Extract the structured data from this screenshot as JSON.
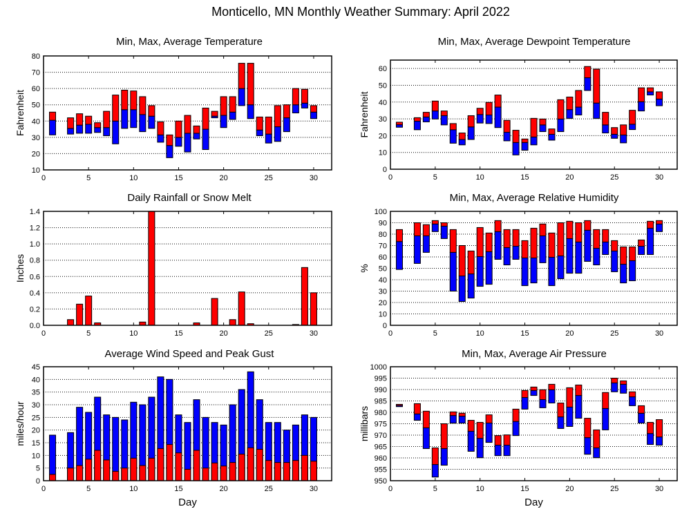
{
  "title": "Monticello, MN Monthly Weather Summary: April 2022",
  "colors": {
    "upper": "#ff0000",
    "lower": "#0000ff",
    "outline": "#000000"
  },
  "chart_data": [
    {
      "type": "bar",
      "subtype": "min-avg-max range",
      "title": "Min, Max, Average Temperature",
      "xlabel": "",
      "ylabel": "Fahrenheit",
      "xlim": [
        0,
        32
      ],
      "ylim": [
        10,
        80
      ],
      "xticks": [
        0,
        5,
        10,
        15,
        20,
        25,
        30
      ],
      "yticks": [
        10,
        20,
        30,
        40,
        50,
        60,
        70,
        80
      ],
      "grid": true,
      "x": [
        1,
        3,
        4,
        5,
        6,
        7,
        8,
        9,
        10,
        11,
        12,
        13,
        14,
        15,
        16,
        17,
        18,
        19,
        20,
        21,
        22,
        23,
        24,
        25,
        26,
        27,
        28,
        29,
        30
      ],
      "min": [
        31.5,
        32,
        32.5,
        32.5,
        33,
        31,
        26,
        35.5,
        36,
        33.5,
        35.5,
        27,
        17.5,
        24.5,
        21,
        29,
        22.5,
        42,
        36,
        41,
        49.5,
        41.5,
        31,
        26.5,
        27.5,
        33.5,
        45,
        48,
        41.5
      ],
      "avg": [
        40.5,
        35.5,
        37.5,
        38,
        36,
        36,
        40,
        47,
        47,
        44,
        43,
        31.5,
        25,
        30,
        32.5,
        32.5,
        35,
        43,
        43.5,
        45.5,
        60,
        50,
        34.5,
        32,
        36.5,
        42,
        50,
        51,
        45.5
      ],
      "max": [
        45.5,
        42,
        44.5,
        43,
        39,
        46,
        56,
        59,
        58.5,
        55,
        49.5,
        39.5,
        31.5,
        40,
        43.5,
        37,
        48,
        46,
        55,
        55,
        75.5,
        75.5,
        42.5,
        42.5,
        49.5,
        50,
        60,
        59.5,
        49.5
      ]
    },
    {
      "type": "bar",
      "subtype": "min-avg-max range",
      "title": "Min, Max, Average Dewpoint Temperature",
      "xlabel": "",
      "ylabel": "Fahrenheit",
      "xlim": [
        0,
        32
      ],
      "ylim": [
        0,
        65
      ],
      "xticks": [
        0,
        5,
        10,
        15,
        20,
        25,
        30
      ],
      "yticks": [
        0,
        10,
        20,
        30,
        40,
        50,
        60
      ],
      "grid": true,
      "x": [
        1,
        3,
        4,
        5,
        6,
        7,
        8,
        9,
        10,
        11,
        12,
        13,
        14,
        15,
        16,
        17,
        18,
        19,
        20,
        21,
        22,
        23,
        24,
        25,
        26,
        27,
        28,
        29,
        30
      ],
      "min": [
        25,
        23.5,
        28.2,
        29.9,
        26.4,
        15.5,
        14.5,
        17.7,
        27.5,
        27.2,
        24.8,
        16.9,
        8.5,
        11.3,
        14.5,
        22.4,
        17.3,
        22.4,
        30.3,
        32.3,
        46.9,
        30.3,
        21.6,
        18.4,
        15.7,
        23.6,
        34.7,
        44.2,
        37.8
      ],
      "avg": [
        26.5,
        28.6,
        31.1,
        34.7,
        31.9,
        23.5,
        17.7,
        25.2,
        32.6,
        32.3,
        37,
        22,
        15.9,
        15.9,
        19.2,
        26.4,
        20.8,
        29.9,
        35.5,
        37,
        54.5,
        39.4,
        26.4,
        20.8,
        20.4,
        26.8,
        40.2,
        46.1,
        41.8
      ],
      "max": [
        28,
        30.7,
        33.9,
        40.6,
        34.7,
        27.2,
        21.6,
        31.9,
        36.3,
        39.8,
        44.2,
        29.1,
        23.2,
        18,
        30.3,
        29.9,
        24,
        41.4,
        43,
        46.9,
        61.2,
        59.6,
        33.9,
        24.8,
        26.4,
        35.1,
        48.5,
        48.5,
        46.1
      ]
    },
    {
      "type": "bar",
      "title": "Daily Rainfall or Snow Melt",
      "xlabel": "",
      "ylabel": "Inches",
      "xlim": [
        0,
        32
      ],
      "ylim": [
        0,
        1.4
      ],
      "xticks": [
        0,
        5,
        10,
        15,
        20,
        25,
        30
      ],
      "yticks": [
        0.0,
        0.2,
        0.4,
        0.6,
        0.8,
        1.0,
        1.2,
        1.4
      ],
      "ytick_labels": [
        "0.0",
        "0.2",
        "0.4",
        "0.6",
        "0.8",
        "1.0",
        "1.2",
        "1.4"
      ],
      "grid": true,
      "x": [
        3,
        4,
        5,
        6,
        11,
        12,
        17,
        19,
        21,
        22,
        23,
        28,
        29,
        30
      ],
      "values": [
        0.07,
        0.26,
        0.36,
        0.03,
        0.04,
        1.4,
        0.03,
        0.33,
        0.07,
        0.41,
        0.02,
        0.01,
        0.71,
        0.4
      ]
    },
    {
      "type": "bar",
      "subtype": "min-avg-max range",
      "title": "Min, Max, Average Relative Humidity",
      "xlabel": "",
      "ylabel": "%",
      "xlim": [
        0,
        32
      ],
      "ylim": [
        0,
        100
      ],
      "xticks": [
        0,
        5,
        10,
        15,
        20,
        25,
        30
      ],
      "yticks": [
        0,
        10,
        20,
        30,
        40,
        50,
        60,
        70,
        80,
        90,
        100
      ],
      "grid": true,
      "x": [
        1,
        3,
        4,
        5,
        6,
        7,
        8,
        9,
        10,
        11,
        12,
        13,
        14,
        15,
        16,
        17,
        18,
        19,
        20,
        21,
        22,
        23,
        24,
        25,
        26,
        27,
        28,
        29,
        30
      ],
      "min": [
        49,
        54.3,
        64,
        82.2,
        76.1,
        30,
        20.9,
        23.9,
        34.2,
        36,
        57.9,
        53,
        57.9,
        34.8,
        37.2,
        54.9,
        34.8,
        40.9,
        45.7,
        45.7,
        56.1,
        53,
        62.1,
        47,
        37.2,
        39.1,
        62.1,
        62.1,
        82.2
      ],
      "avg": [
        73.5,
        78.5,
        78.5,
        88.9,
        87,
        64,
        43.3,
        45.1,
        60.3,
        64.6,
        82.2,
        68.2,
        69.4,
        59.1,
        59.1,
        78.5,
        59.7,
        60.9,
        76.1,
        73.1,
        83.4,
        67.6,
        73.1,
        65.2,
        53.6,
        56.7,
        69.4,
        85.2,
        88.9
      ],
      "max": [
        84,
        90,
        88.3,
        91.9,
        90,
        84,
        70,
        65.2,
        85.8,
        81,
        91.9,
        84,
        84,
        74.3,
        85.2,
        88.9,
        81,
        90,
        91.3,
        90,
        91.9,
        84,
        84,
        74.3,
        68.8,
        68.8,
        74.9,
        91.3,
        91.9
      ]
    },
    {
      "type": "bar",
      "subtype": "average and peak",
      "title": "Average Wind Speed and Peak Gust",
      "xlabel": "Day",
      "ylabel": "miles/hour",
      "xlim": [
        0,
        32
      ],
      "ylim": [
        0,
        45
      ],
      "xticks": [
        0,
        5,
        10,
        15,
        20,
        25,
        30
      ],
      "yticks": [
        0,
        5,
        10,
        15,
        20,
        25,
        30,
        35,
        40,
        45
      ],
      "grid": true,
      "x": [
        1,
        3,
        4,
        5,
        6,
        7,
        8,
        9,
        10,
        11,
        12,
        13,
        14,
        15,
        16,
        17,
        18,
        19,
        20,
        21,
        22,
        23,
        24,
        25,
        26,
        27,
        28,
        29,
        30
      ],
      "avg": [
        2.5,
        5,
        6,
        8.5,
        12,
        8.2,
        3.7,
        5,
        8.9,
        6,
        8.9,
        12.7,
        14.3,
        11,
        4.5,
        12,
        5,
        7,
        5.8,
        7.2,
        10.5,
        13,
        12.4,
        8,
        7.2,
        7.2,
        8,
        10,
        7.7
      ],
      "peak": [
        18,
        19,
        29,
        27,
        33,
        26,
        25,
        24,
        31,
        30,
        33,
        41,
        40,
        26,
        23,
        32,
        25,
        23,
        22,
        30,
        36,
        43,
        32,
        23,
        23,
        20,
        22,
        26,
        25
      ]
    },
    {
      "type": "bar",
      "subtype": "min-avg-max range",
      "title": "Min, Max, Average Air Pressure",
      "xlabel": "Day",
      "ylabel": "millibars",
      "xlim": [
        0,
        32
      ],
      "ylim": [
        950,
        1000
      ],
      "xticks": [
        0,
        5,
        10,
        15,
        20,
        25,
        30
      ],
      "yticks": [
        950,
        955,
        960,
        965,
        970,
        975,
        980,
        985,
        990,
        995,
        1000
      ],
      "grid": true,
      "x": [
        1,
        3,
        4,
        5,
        6,
        7,
        8,
        9,
        10,
        11,
        12,
        13,
        14,
        15,
        16,
        17,
        18,
        19,
        20,
        21,
        22,
        23,
        24,
        25,
        26,
        27,
        28,
        29,
        30
      ],
      "min": [
        982.5,
        976.5,
        964.1,
        951.6,
        956.8,
        975.3,
        975.3,
        962.9,
        960.1,
        966.8,
        961,
        961,
        969.8,
        981.4,
        987.4,
        982,
        984.1,
        972.9,
        973.8,
        977.4,
        961.6,
        960.1,
        972.3,
        989,
        988.4,
        982.9,
        975.3,
        965.9,
        965.6
      ],
      "avg": [
        983,
        979.3,
        973.2,
        957.1,
        964.1,
        978.6,
        978.3,
        971.7,
        968.6,
        975.3,
        965.6,
        965.6,
        976,
        986.5,
        989.6,
        985.6,
        989.9,
        978,
        982.3,
        987.4,
        968.9,
        964.4,
        981.7,
        992.9,
        992.3,
        986.8,
        979.6,
        970.7,
        969.2
      ],
      "max": [
        983.5,
        983.8,
        980.5,
        964.4,
        975,
        980.2,
        979.6,
        976.5,
        975.6,
        978.9,
        969.8,
        970.1,
        981.4,
        989.6,
        991.1,
        989.9,
        992.3,
        984.1,
        990.8,
        992,
        977.4,
        972.3,
        988.7,
        995,
        993.8,
        989,
        982.9,
        975.6,
        976.8
      ]
    }
  ]
}
